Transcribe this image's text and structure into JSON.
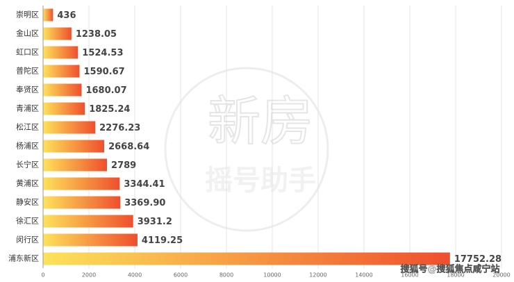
{
  "chart_data": {
    "type": "hbar",
    "categories": [
      "崇明区",
      "金山区",
      "虹口区",
      "普陀区",
      "奉贤区",
      "青浦区",
      "松江区",
      "杨浦区",
      "长宁区",
      "黄浦区",
      "静安区",
      "徐汇区",
      "闵行区",
      "浦东新区"
    ],
    "values": [
      436,
      1238.05,
      1524.53,
      1590.67,
      1680.07,
      1825.24,
      2276.23,
      2668.64,
      2789,
      3344.41,
      3369.9,
      3931.2,
      4119.25,
      17752.28
    ],
    "value_labels": [
      "436",
      "1238.05",
      "1524.53",
      "1590.67",
      "1680.07",
      "1825.24",
      "2276.23",
      "2668.64",
      "2789",
      "3344.41",
      "3369.90",
      "3931.2",
      "4119.25",
      "17752.28"
    ],
    "colors": [
      "#fde25a",
      "#ef4f2d"
    ],
    "xlim": [
      0,
      20000
    ],
    "xticks": [
      0,
      2000,
      4000,
      6000,
      8000,
      10000,
      12000,
      14000,
      16000,
      18000,
      20000
    ],
    "grid": true
  },
  "watermark": {
    "title": "新房",
    "subtitle": "摇号助手",
    "source": "搜狐号@搜狐焦点咸宁站"
  }
}
